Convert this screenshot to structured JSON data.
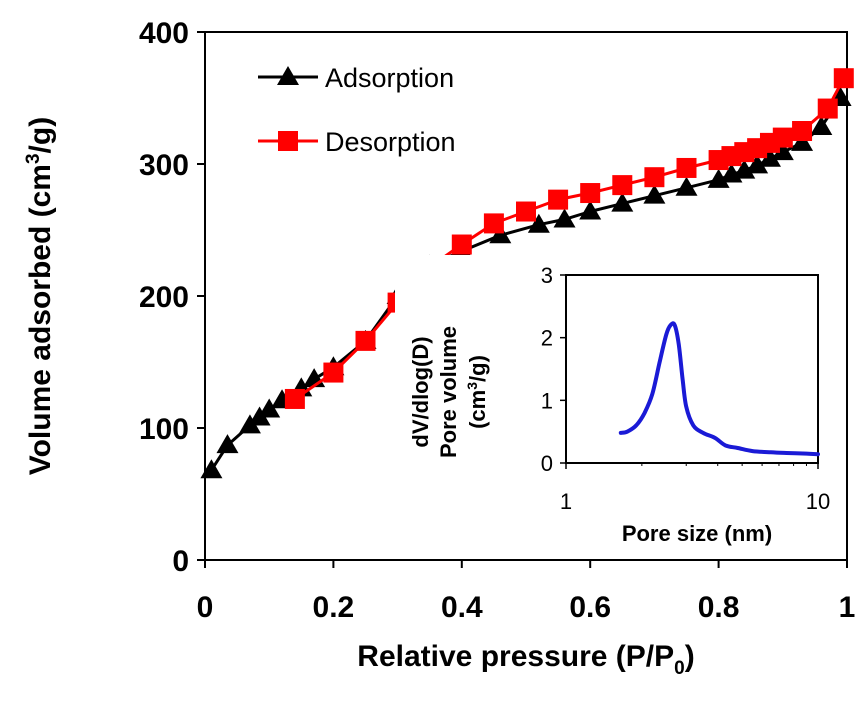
{
  "chart_data": [
    {
      "type": "line",
      "xlabel": "Relative pressure (P/P0)",
      "xlabel_main": "Relative pressure (P/P",
      "xlabel_sub": "0",
      "xlabel_end": ")",
      "ylabel": "Volume adsorbed (cm3/g)",
      "ylabel_main": "Volume adsorbed (cm",
      "ylabel_sup": "3",
      "ylabel_end": "/g)",
      "xlim": [
        0,
        1
      ],
      "ylim": [
        0,
        400
      ],
      "xticks": [
        0,
        0.2,
        0.4,
        0.6,
        0.8,
        1
      ],
      "xtick_labels": [
        "0",
        "0.2",
        "0.4",
        "0.6",
        "0.8",
        "1"
      ],
      "yticks": [
        0,
        100,
        200,
        300,
        400
      ],
      "ytick_labels": [
        "0",
        "100",
        "200",
        "300",
        "400"
      ],
      "grid": false,
      "legend_position": "top-left",
      "series": [
        {
          "name": "Adsorption",
          "color": "#000000",
          "marker": "triangle",
          "x": [
            0.01,
            0.035,
            0.07,
            0.085,
            0.1,
            0.12,
            0.15,
            0.17,
            0.2,
            0.25,
            0.3,
            0.33,
            0.35,
            0.4,
            0.46,
            0.52,
            0.56,
            0.6,
            0.65,
            0.7,
            0.75,
            0.8,
            0.82,
            0.84,
            0.86,
            0.88,
            0.9,
            0.93,
            0.96,
            0.99
          ],
          "y": [
            68,
            87,
            102,
            108,
            114,
            121,
            130,
            137,
            146,
            166,
            200,
            213,
            223,
            234,
            246,
            254,
            258,
            264,
            270,
            276,
            282,
            288,
            292,
            295,
            299,
            304,
            309,
            316,
            328,
            350
          ]
        },
        {
          "name": "Desorption",
          "color": "#ff0000",
          "marker": "square",
          "x": [
            0.14,
            0.2,
            0.25,
            0.3,
            0.33,
            0.4,
            0.45,
            0.5,
            0.55,
            0.6,
            0.65,
            0.7,
            0.75,
            0.8,
            0.82,
            0.84,
            0.86,
            0.88,
            0.9,
            0.93,
            0.97,
            0.995
          ],
          "y": [
            122,
            142,
            166,
            195,
            215,
            239,
            255,
            264,
            273,
            278,
            284,
            290,
            297,
            303,
            306,
            309,
            312,
            316,
            320,
            325,
            342,
            365
          ]
        }
      ]
    },
    {
      "type": "line",
      "inset": true,
      "xlabel": "Pore size (nm)",
      "ylabel_line1": "dV/dlog(D)",
      "ylabel_line2": "Pore volume",
      "ylabel_line3_main": "(cm",
      "ylabel_line3_sup": "3",
      "ylabel_line3_end": "/g)",
      "xscale": "log",
      "xlim": [
        1,
        10
      ],
      "ylim": [
        0,
        3
      ],
      "xticks": [
        1,
        10
      ],
      "xtick_labels": [
        "1",
        "10"
      ],
      "yticks": [
        0,
        1,
        2,
        3
      ],
      "ytick_labels": [
        "0",
        "1",
        "2",
        "3"
      ],
      "grid": false,
      "series": [
        {
          "color": "#1a1ad6",
          "x": [
            1.65,
            1.75,
            1.9,
            2.05,
            2.2,
            2.35,
            2.5,
            2.6,
            2.7,
            2.8,
            2.9,
            3.0,
            3.2,
            3.5,
            3.9,
            4.3,
            4.8,
            5.5,
            6.5,
            7.5,
            9.0,
            10.0
          ],
          "y": [
            0.48,
            0.5,
            0.6,
            0.8,
            1.1,
            1.6,
            2.05,
            2.2,
            2.2,
            1.9,
            1.35,
            0.9,
            0.6,
            0.48,
            0.4,
            0.28,
            0.24,
            0.19,
            0.17,
            0.16,
            0.15,
            0.14
          ]
        }
      ]
    }
  ]
}
